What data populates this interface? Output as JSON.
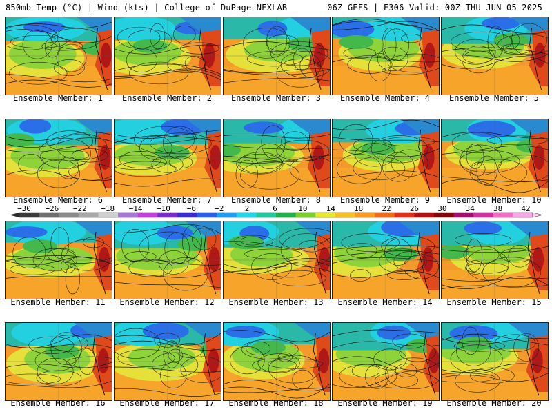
{
  "header": {
    "left": "850mb Temp (°C) | Wind (kts) | College of DuPage NEXLAB",
    "right": "06Z GEFS | F306 Valid: 00Z THU JUN 05 2025"
  },
  "colorbar": {
    "ticks": [
      "−30",
      "−26",
      "−22",
      "−18",
      "−14",
      "−10",
      "−6",
      "−2",
      "2",
      "6",
      "10",
      "14",
      "18",
      "22",
      "26",
      "30",
      "34",
      "38",
      "42"
    ],
    "colors": [
      "#3b3b3b",
      "#6e6e6e",
      "#8a8a8a",
      "#a8a8a8",
      "#cfcfcf",
      "#a678d6",
      "#c040d8",
      "#7a2cc8",
      "#3a2ad0",
      "#2a5ee8",
      "#1e9ef0",
      "#1ed6e8",
      "#22c8a0",
      "#20b04a",
      "#7ccf2a",
      "#e8e82a",
      "#f8c020",
      "#f89a1e",
      "#f06a1a",
      "#e0301a",
      "#b01010",
      "#800808",
      "#a01070",
      "#d030a0",
      "#f070c8",
      "#f8a8e8"
    ]
  },
  "panels": [
    {
      "label": "Ensemble Member: 1"
    },
    {
      "label": "Ensemble Member: 2"
    },
    {
      "label": "Ensemble Member: 3"
    },
    {
      "label": "Ensemble Member: 4"
    },
    {
      "label": "Ensemble Member: 5"
    },
    {
      "label": "Ensemble Member: 6"
    },
    {
      "label": "Ensemble Member: 7"
    },
    {
      "label": "Ensemble Member: 8"
    },
    {
      "label": "Ensemble Member: 9"
    },
    {
      "label": "Ensemble Member: 10"
    },
    {
      "label": "Ensemble Member: 11"
    },
    {
      "label": "Ensemble Member: 12"
    },
    {
      "label": "Ensemble Member: 13"
    },
    {
      "label": "Ensemble Member: 14"
    },
    {
      "label": "Ensemble Member: 15"
    },
    {
      "label": "Ensemble Member: 16"
    },
    {
      "label": "Ensemble Member: 17"
    },
    {
      "label": "Ensemble Member: 18"
    },
    {
      "label": "Ensemble Member: 19"
    },
    {
      "label": "Ensemble Member: 20"
    }
  ]
}
